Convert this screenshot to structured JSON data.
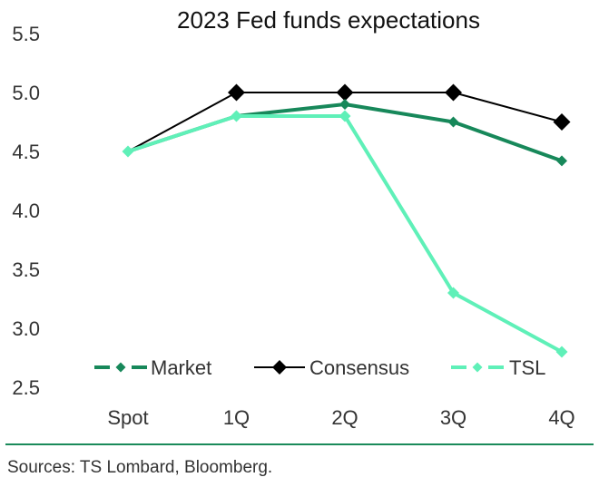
{
  "chart_data": {
    "type": "line",
    "title": "2023 Fed funds expectations",
    "categories": [
      "Spot",
      "1Q",
      "2Q",
      "3Q",
      "4Q"
    ],
    "ylim": [
      2.5,
      5.5
    ],
    "yticks": [
      "2.5",
      "3.0",
      "3.5",
      "4.0",
      "4.5",
      "5.0",
      "5.5"
    ],
    "grid": false,
    "legend_position": "bottom",
    "series": [
      {
        "name": "Market",
        "color": "#17885a",
        "style": "dash-dot",
        "marker": "diamond",
        "values": [
          4.5,
          4.8,
          4.9,
          4.75,
          4.42
        ]
      },
      {
        "name": "Consensus",
        "color": "#000000",
        "style": "solid",
        "marker": "diamond",
        "values": [
          null,
          5.0,
          5.0,
          5.0,
          4.75
        ]
      },
      {
        "name": "TSL",
        "color": "#5ff0b8",
        "style": "dash-dot",
        "marker": "diamond",
        "values": [
          4.5,
          4.8,
          4.8,
          3.3,
          2.8
        ]
      }
    ]
  },
  "source_note": "Sources: TS Lombard, Bloomberg."
}
